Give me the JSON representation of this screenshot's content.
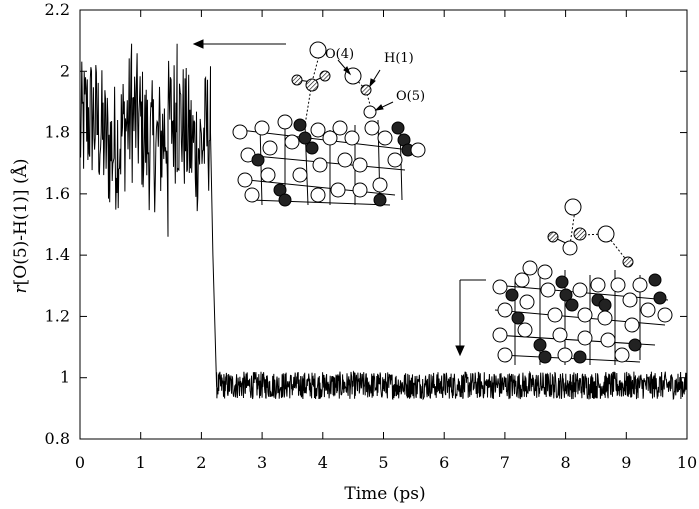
{
  "chart_data": {
    "type": "line",
    "xlabel": "Time (ps)",
    "ylabel": "r[O(5)-H(1)] (Å)",
    "ylabel_parts": {
      "italic_r": "r",
      "bracketed": "[O(5)-H(1)] (Å)"
    },
    "xlim": [
      0,
      10
    ],
    "ylim": [
      0.8,
      2.2
    ],
    "x_ticks": [
      "0",
      "1",
      "2",
      "3",
      "4",
      "5",
      "6",
      "7",
      "8",
      "9",
      "10"
    ],
    "y_ticks": [
      "0.8",
      "1",
      "1.2",
      "1.4",
      "1.6",
      "1.8",
      "2",
      "2.2"
    ],
    "grid": false,
    "series": [
      {
        "segments": [
          {
            "x_range": [
              0.0,
              2.15
            ],
            "mean": 1.8,
            "amplitude": 0.22,
            "min": 1.46,
            "max": 2.09
          },
          {
            "x_range": [
              2.15,
              2.25
            ],
            "from": 1.8,
            "to": 0.97
          },
          {
            "x_range": [
              2.25,
              10.0
            ],
            "mean": 0.975,
            "amplitude": 0.045,
            "min": 0.93,
            "max": 1.03
          }
        ],
        "keypoints": [
          {
            "x": 0.0,
            "y": 1.78
          },
          {
            "x": 0.85,
            "y": 2.09
          },
          {
            "x": 1.45,
            "y": 1.46
          },
          {
            "x": 1.6,
            "y": 2.09
          },
          {
            "x": 2.15,
            "y": 1.82
          },
          {
            "x": 2.22,
            "y": 0.97
          },
          {
            "x": 2.3,
            "y": 0.94
          },
          {
            "x": 10.0,
            "y": 0.98
          }
        ]
      }
    ],
    "annotations": [
      "O(4)",
      "H(1)",
      "O(5)"
    ]
  }
}
